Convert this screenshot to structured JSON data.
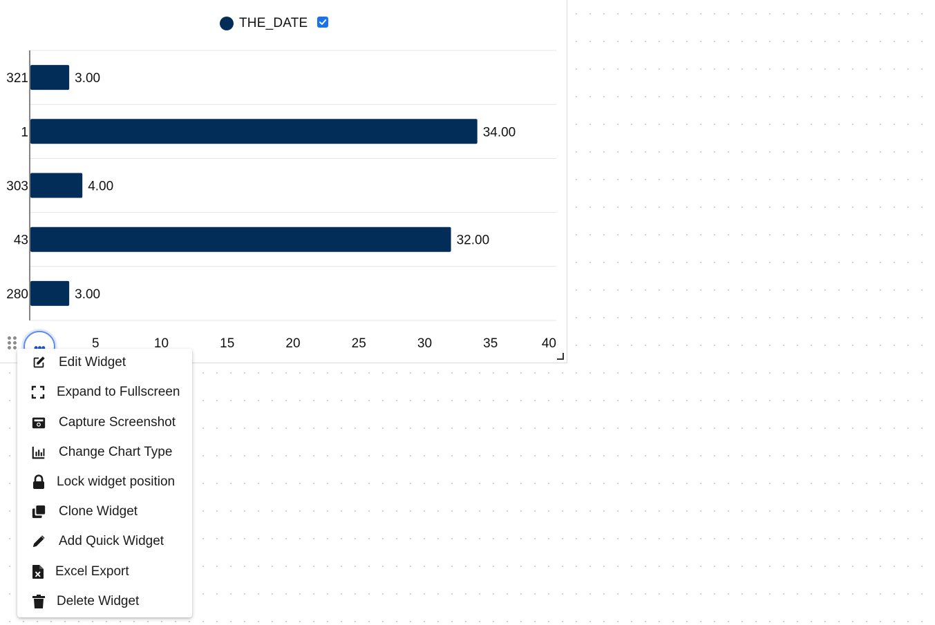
{
  "legend": {
    "series_name": "THE_DATE",
    "checked": true
  },
  "chart_data": {
    "type": "bar",
    "orientation": "horizontal",
    "categories": [
      "321",
      "1",
      "303",
      "43",
      "280"
    ],
    "series": [
      {
        "name": "THE_DATE",
        "values": [
          3.0,
          34.0,
          4.0,
          32.0,
          3.0
        ],
        "color": "#032d59"
      }
    ],
    "data_labels": [
      "3.00",
      "34.00",
      "4.00",
      "32.00",
      "3.00"
    ],
    "x_ticks": [
      "5",
      "10",
      "15",
      "20",
      "25",
      "30",
      "35",
      "40"
    ],
    "xlim": [
      0,
      40
    ],
    "grid": "horizontal",
    "legend_position": "top-center"
  },
  "menu": {
    "items": [
      {
        "label": "Edit Widget",
        "icon": "edit-icon"
      },
      {
        "label": "Expand to Fullscreen",
        "icon": "fullscreen-icon"
      },
      {
        "label": "Capture Screenshot",
        "icon": "camera-icon"
      },
      {
        "label": "Change Chart Type",
        "icon": "bar-chart-icon"
      },
      {
        "label": "Lock widget position",
        "icon": "lock-icon"
      },
      {
        "label": "Clone Widget",
        "icon": "clone-icon"
      },
      {
        "label": "Add Quick Widget",
        "icon": "pencil-icon"
      },
      {
        "label": "Excel Export",
        "icon": "excel-file-icon"
      },
      {
        "label": "Delete Widget",
        "icon": "trash-icon"
      }
    ]
  },
  "colors": {
    "bar": "#032d59",
    "accent": "#1a73e8",
    "menu_text": "#1b1b1b"
  }
}
